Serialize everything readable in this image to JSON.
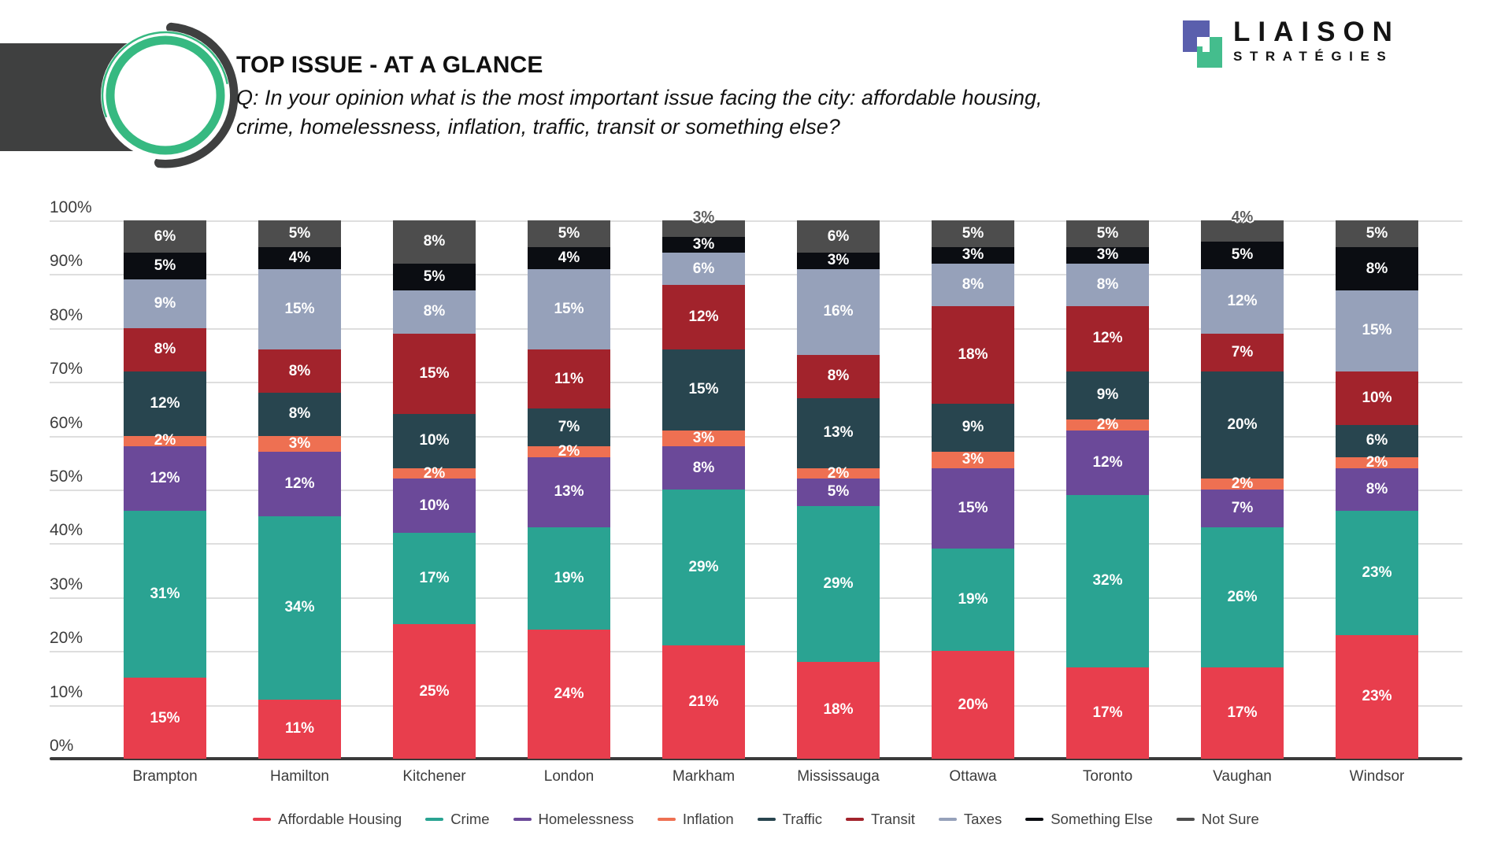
{
  "header": {
    "title": "TOP ISSUE - AT A GLANCE",
    "subtitle_line1": "Q: In your opinion what is the most important issue facing the city: affordable housing,",
    "subtitle_line2": "crime, homelessness, inflation, traffic, transit or something else?"
  },
  "brand": {
    "name": "LIAISON",
    "tagline": "STRATÉGIES",
    "square_blue": "#5a5fad",
    "square_green": "#44bd8d",
    "ring_green": "#36b981",
    "ring_dark": "#3f4040"
  },
  "chart_data": {
    "type": "bar",
    "stacked": true,
    "value_unit": "%",
    "ylim": [
      0,
      100
    ],
    "grid": "horizontal",
    "legend_position": "bottom",
    "y_ticks": [
      "100%",
      "90%",
      "80%",
      "70%",
      "60%",
      "50%",
      "40%",
      "30%",
      "20%",
      "10%",
      "0%"
    ],
    "categories": [
      "Brampton",
      "Hamilton",
      "Kitchener",
      "London",
      "Markham",
      "Mississauga",
      "Ottawa",
      "Toronto",
      "Vaughan",
      "Windsor"
    ],
    "series_order": "bottom to top",
    "series": [
      {
        "name": "Affordable Housing",
        "color": "#e83e4d",
        "values": [
          15,
          11,
          25,
          24,
          21,
          18,
          20,
          17,
          17,
          23
        ]
      },
      {
        "name": "Crime",
        "color": "#2aa392",
        "values": [
          31,
          34,
          17,
          19,
          29,
          29,
          19,
          32,
          26,
          23
        ]
      },
      {
        "name": "Homelessness",
        "color": "#6b4999",
        "values": [
          12,
          12,
          10,
          13,
          8,
          5,
          15,
          12,
          7,
          8
        ]
      },
      {
        "name": "Inflation",
        "color": "#ee7052",
        "values": [
          2,
          3,
          2,
          2,
          3,
          2,
          3,
          2,
          2,
          2
        ]
      },
      {
        "name": "Traffic",
        "color": "#28454f",
        "values": [
          12,
          8,
          10,
          7,
          15,
          13,
          9,
          9,
          20,
          6
        ]
      },
      {
        "name": "Transit",
        "color": "#a2232c",
        "values": [
          8,
          8,
          15,
          11,
          12,
          8,
          18,
          12,
          7,
          10
        ]
      },
      {
        "name": "Taxes",
        "color": "#96a1ba",
        "values": [
          9,
          15,
          8,
          15,
          6,
          16,
          8,
          8,
          12,
          15
        ]
      },
      {
        "name": "Something Else",
        "color": "#0b0d12",
        "values": [
          5,
          4,
          5,
          4,
          3,
          3,
          3,
          3,
          5,
          8
        ]
      },
      {
        "name": "Not Sure",
        "color": "#4d4d4d",
        "values": [
          6,
          5,
          8,
          5,
          3,
          6,
          5,
          5,
          4,
          5
        ]
      }
    ],
    "data_labels": "every segment labeled in white; topmost segment label drawn above bar in grey when under 5%"
  }
}
